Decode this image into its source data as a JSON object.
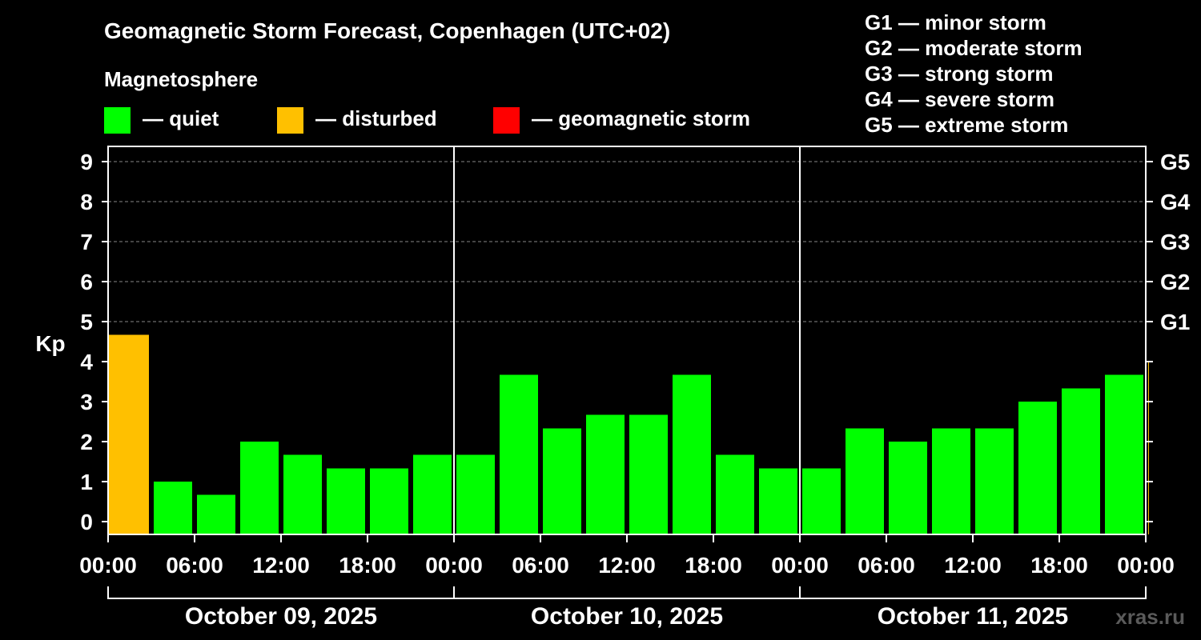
{
  "header": {
    "title": "Geomagnetic Storm Forecast, Copenhagen (UTC+02)",
    "subtitle": "Magnetosphere"
  },
  "legend": [
    {
      "label": "— quiet",
      "color": "#00ff00"
    },
    {
      "label": "— disturbed",
      "color": "#ffc000"
    },
    {
      "label": "— geomagnetic storm",
      "color": "#ff0000"
    }
  ],
  "g_scale": [
    "G1 — minor storm",
    "G2 — moderate storm",
    "G3 — strong storm",
    "G4 — severe storm",
    "G5 — extreme storm"
  ],
  "watermark": "xras.ru",
  "chart_data": {
    "type": "bar",
    "title": "Geomagnetic Storm Forecast, Copenhagen (UTC+02)",
    "ylabel": "Kp",
    "ylim": [
      0,
      9
    ],
    "y_ticks": [
      "0",
      "1",
      "2",
      "3",
      "4",
      "5",
      "6",
      "7",
      "8",
      "9"
    ],
    "right_ticks": [
      {
        "value": 5,
        "label": "G1"
      },
      {
        "value": 6,
        "label": "G2"
      },
      {
        "value": 7,
        "label": "G3"
      },
      {
        "value": 8,
        "label": "G4"
      },
      {
        "value": 9,
        "label": "G5"
      }
    ],
    "x_tick_labels": [
      "00:00",
      "06:00",
      "12:00",
      "18:00",
      "00:00",
      "06:00",
      "12:00",
      "18:00",
      "00:00",
      "06:00",
      "12:00",
      "18:00",
      "00:00"
    ],
    "days": [
      "October 09, 2025",
      "October 10, 2025",
      "October 11, 2025"
    ],
    "grid": "dashed horizontal at each integer Kp from 5 to 9",
    "bar_hours": [
      0,
      3,
      6,
      9,
      12,
      15,
      18,
      21,
      24,
      27,
      30,
      33,
      36,
      39,
      42,
      45,
      48,
      51,
      54,
      57,
      60,
      63,
      66,
      69,
      72
    ],
    "values": [
      4.67,
      1.0,
      0.67,
      2.0,
      1.67,
      1.33,
      1.33,
      1.67,
      1.67,
      3.67,
      2.33,
      2.67,
      2.67,
      3.67,
      1.67,
      1.33,
      1.33,
      2.33,
      2.0,
      2.33,
      2.33,
      3.0,
      3.33,
      3.67,
      4.0
    ],
    "status": [
      "disturbed",
      "quiet",
      "quiet",
      "quiet",
      "quiet",
      "quiet",
      "quiet",
      "quiet",
      "quiet",
      "quiet",
      "quiet",
      "quiet",
      "quiet",
      "quiet",
      "quiet",
      "quiet",
      "quiet",
      "quiet",
      "quiet",
      "quiet",
      "quiet",
      "quiet",
      "quiet",
      "quiet",
      "disturbed"
    ],
    "status_colors": {
      "quiet": "#00ff00",
      "disturbed": "#ffc000",
      "storm": "#ff0000"
    }
  }
}
